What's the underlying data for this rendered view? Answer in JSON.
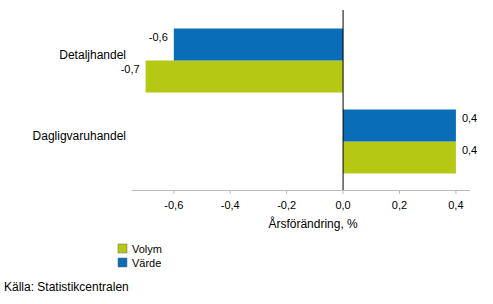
{
  "chart_data": {
    "type": "bar",
    "orientation": "horizontal",
    "categories": [
      "Detaljhandel",
      "Dagligvaruhandel"
    ],
    "series": [
      {
        "name": "Volym",
        "color": "#b4c814",
        "values": [
          -0.7,
          0.4
        ],
        "value_labels": [
          "-0,7",
          "0,4"
        ]
      },
      {
        "name": "Värde",
        "color": "#0a6db7",
        "values": [
          -0.6,
          0.4
        ],
        "value_labels": [
          "-0,6",
          "0,4"
        ]
      }
    ],
    "x_label": "Årsförändring, %",
    "xlim": [
      -0.75,
      0.45
    ],
    "xticks": [
      {
        "value": -0.6,
        "label": "-0,6"
      },
      {
        "value": -0.4,
        "label": "-0,4"
      },
      {
        "value": -0.2,
        "label": "-0,2"
      },
      {
        "value": 0,
        "label": "0,0"
      },
      {
        "value": 0.2,
        "label": "0,2"
      },
      {
        "value": 0.4,
        "label": "0,4"
      }
    ],
    "grid": false,
    "data_labels": true,
    "legend": "bottom-left",
    "source": "Källa: Statistikcentralen"
  }
}
